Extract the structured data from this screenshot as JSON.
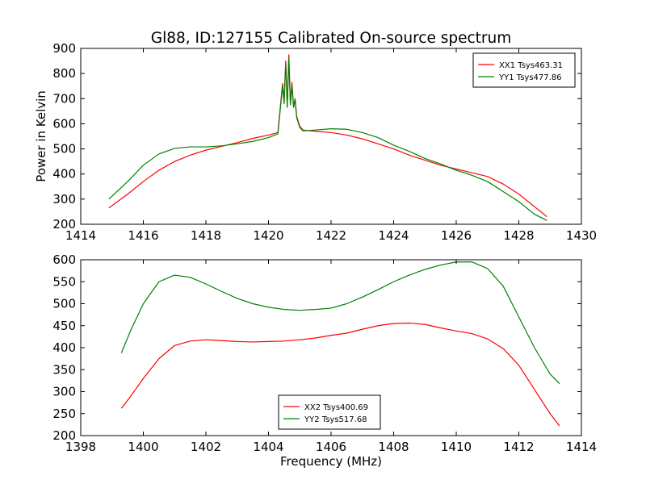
{
  "figure": {
    "title": "Gl88, ID:127155 Calibrated On-source spectrum",
    "xlabel": "Frequency (MHz)",
    "ylabel": "Power in Kelvin"
  },
  "chart_data": [
    {
      "type": "line",
      "xlim": [
        1414,
        1430
      ],
      "ylim": [
        200,
        900
      ],
      "xticks": [
        1414,
        1416,
        1418,
        1420,
        1422,
        1424,
        1426,
        1428,
        1430
      ],
      "yticks": [
        200,
        300,
        400,
        500,
        600,
        700,
        800,
        900
      ],
      "legend_position": "top-right",
      "grid": false,
      "series": [
        {
          "name": "XX1 Tsys463.31",
          "color": "#ff0000",
          "x": [
            1414.9,
            1415.5,
            1416.0,
            1416.5,
            1417.0,
            1417.5,
            1418.0,
            1418.5,
            1419.0,
            1419.5,
            1420.0,
            1420.3,
            1420.45,
            1420.5,
            1420.55,
            1420.6,
            1420.65,
            1420.7,
            1420.75,
            1420.8,
            1420.85,
            1420.9,
            1421.0,
            1421.1,
            1421.5,
            1422.0,
            1422.5,
            1423.0,
            1423.5,
            1424.0,
            1424.5,
            1425.0,
            1425.5,
            1426.0,
            1426.5,
            1427.0,
            1427.5,
            1428.0,
            1428.5,
            1428.9
          ],
          "values": [
            265,
            320,
            370,
            415,
            450,
            475,
            495,
            510,
            525,
            542,
            555,
            565,
            760,
            690,
            850,
            670,
            875,
            680,
            765,
            670,
            700,
            630,
            590,
            575,
            570,
            565,
            555,
            540,
            520,
            500,
            475,
            455,
            435,
            420,
            405,
            390,
            360,
            320,
            270,
            230
          ]
        },
        {
          "name": "YY1 Tsys477.86",
          "color": "#008000",
          "x": [
            1414.9,
            1415.5,
            1416.0,
            1416.5,
            1417.0,
            1417.5,
            1418.0,
            1418.5,
            1419.0,
            1419.5,
            1420.0,
            1420.3,
            1420.45,
            1420.5,
            1420.55,
            1420.6,
            1420.65,
            1420.7,
            1420.75,
            1420.8,
            1420.85,
            1420.9,
            1421.0,
            1421.1,
            1421.5,
            1422.0,
            1422.5,
            1423.0,
            1423.5,
            1424.0,
            1424.5,
            1425.0,
            1425.5,
            1426.0,
            1426.5,
            1427.0,
            1427.5,
            1428.0,
            1428.5,
            1428.9
          ],
          "values": [
            300,
            370,
            435,
            480,
            502,
            508,
            508,
            512,
            520,
            530,
            545,
            560,
            750,
            680,
            840,
            665,
            860,
            675,
            755,
            665,
            695,
            625,
            585,
            572,
            575,
            580,
            578,
            565,
            545,
            515,
            490,
            462,
            440,
            415,
            395,
            370,
            330,
            290,
            240,
            215
          ]
        }
      ]
    },
    {
      "type": "line",
      "xlim": [
        1398,
        1414
      ],
      "ylim": [
        200,
        600
      ],
      "xticks": [
        1398,
        1400,
        1402,
        1404,
        1406,
        1408,
        1410,
        1412,
        1414
      ],
      "yticks": [
        200,
        250,
        300,
        350,
        400,
        450,
        500,
        550,
        600
      ],
      "legend_position": "bottom-center",
      "grid": false,
      "series": [
        {
          "name": "XX2 Tsys400.69",
          "color": "#ff0000",
          "x": [
            1399.3,
            1399.6,
            1400.0,
            1400.5,
            1401.0,
            1401.5,
            1402.0,
            1402.5,
            1403.0,
            1403.5,
            1404.0,
            1404.5,
            1405.0,
            1405.5,
            1406.0,
            1406.5,
            1407.0,
            1407.5,
            1408.0,
            1408.5,
            1409.0,
            1409.5,
            1410.0,
            1410.5,
            1411.0,
            1411.5,
            1412.0,
            1412.5,
            1413.0,
            1413.3
          ],
          "values": [
            262,
            290,
            330,
            375,
            405,
            415,
            418,
            416,
            414,
            413,
            414,
            415,
            418,
            422,
            428,
            433,
            442,
            450,
            455,
            456,
            453,
            445,
            438,
            432,
            420,
            398,
            360,
            305,
            250,
            222
          ]
        },
        {
          "name": "YY2 Tsys517.68",
          "color": "#008000",
          "x": [
            1399.3,
            1399.6,
            1400.0,
            1400.5,
            1401.0,
            1401.5,
            1402.0,
            1402.5,
            1403.0,
            1403.5,
            1404.0,
            1404.5,
            1405.0,
            1405.5,
            1406.0,
            1406.5,
            1407.0,
            1407.5,
            1408.0,
            1408.5,
            1409.0,
            1409.5,
            1410.0,
            1410.5,
            1411.0,
            1411.5,
            1412.0,
            1412.5,
            1413.0,
            1413.3
          ],
          "values": [
            388,
            440,
            500,
            550,
            565,
            560,
            545,
            528,
            512,
            500,
            492,
            487,
            485,
            487,
            490,
            500,
            515,
            532,
            550,
            565,
            578,
            588,
            595,
            595,
            580,
            540,
            470,
            400,
            340,
            318
          ]
        }
      ]
    }
  ]
}
